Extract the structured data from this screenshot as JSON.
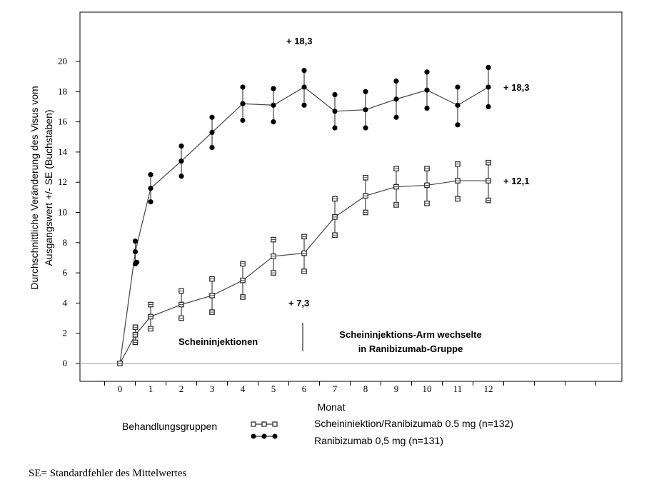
{
  "chart_data": {
    "type": "line",
    "ylabel_line1": "Durchschnittliche Veränderung des Visus vom",
    "ylabel_line2": "Ausgangswert +/- SE (Buchstaben)",
    "xlabel": "Monat",
    "x_ticks": [
      "0",
      "1",
      "2",
      "3",
      "4",
      "5",
      "6",
      "7",
      "8",
      "9",
      "10",
      "11",
      "12"
    ],
    "y_ticks": [
      "0",
      "2",
      "4",
      "6",
      "8",
      "10",
      "12",
      "14",
      "16",
      "18",
      "20"
    ],
    "xlim": [
      0,
      16.5
    ],
    "ylim": [
      0,
      20
    ],
    "grid": false,
    "series": [
      {
        "name": "Ranibizumab 0,5 mg (n=131)",
        "marker": "filled-circle",
        "x": [
          0,
          0.5,
          1,
          2,
          3,
          4,
          5,
          6,
          7,
          8,
          9,
          10,
          11,
          12
        ],
        "y": [
          0,
          7.4,
          11.6,
          13.4,
          15.3,
          17.2,
          17.1,
          18.3,
          16.7,
          16.8,
          17.5,
          18.1,
          17.1,
          18.3
        ],
        "y_low": [
          0,
          6.6,
          10.7,
          12.4,
          14.3,
          16.1,
          16.0,
          17.1,
          15.6,
          15.6,
          16.3,
          16.9,
          15.8,
          17.0
        ],
        "y_high": [
          0,
          8.1,
          12.5,
          14.4,
          16.3,
          18.3,
          18.2,
          19.4,
          17.8,
          18.0,
          18.7,
          19.3,
          18.3,
          19.6
        ],
        "extra_x": [
          0.55
        ],
        "extra_y": [
          6.7
        ]
      },
      {
        "name": "Scheininiektion/Ranibizumab 0.5 mg (n=132)",
        "marker": "open-square",
        "x": [
          0,
          0.5,
          1,
          2,
          3,
          4,
          5,
          6,
          7,
          8,
          9,
          10,
          11,
          12
        ],
        "y": [
          0,
          1.9,
          3.1,
          3.9,
          4.5,
          5.5,
          7.1,
          7.3,
          9.7,
          11.1,
          11.7,
          11.8,
          12.1,
          12.1
        ],
        "y_low": [
          0,
          1.4,
          2.3,
          3.0,
          3.4,
          4.4,
          6.0,
          6.1,
          8.5,
          10.0,
          10.5,
          10.6,
          10.9,
          10.8
        ],
        "y_high": [
          0,
          2.4,
          3.9,
          4.8,
          5.6,
          6.6,
          8.2,
          8.4,
          10.9,
          12.3,
          12.9,
          12.9,
          13.2,
          13.3
        ]
      }
    ],
    "annotations": {
      "ranibizumab_peak": "+ 18,3",
      "ranibizumab_end": "+ 18,3",
      "sham_end": "+ 12,1",
      "sham_month6": "+ 7,3",
      "phase1": "Scheininjektionen",
      "phase2_line1": "Scheininjektions-Arm wechselte",
      "phase2_line2": "in Ranibizumab-Gruppe"
    }
  },
  "legend": {
    "title": "Behandlungsgruppen",
    "sham_label": "Scheininiektion/Ranibizumab 0.5 mg (n=132)",
    "ranibizumab_label": "Ranibizumab 0,5 mg (n=131)"
  },
  "footnote": "SE= Standardfehler des Mittelwertes"
}
